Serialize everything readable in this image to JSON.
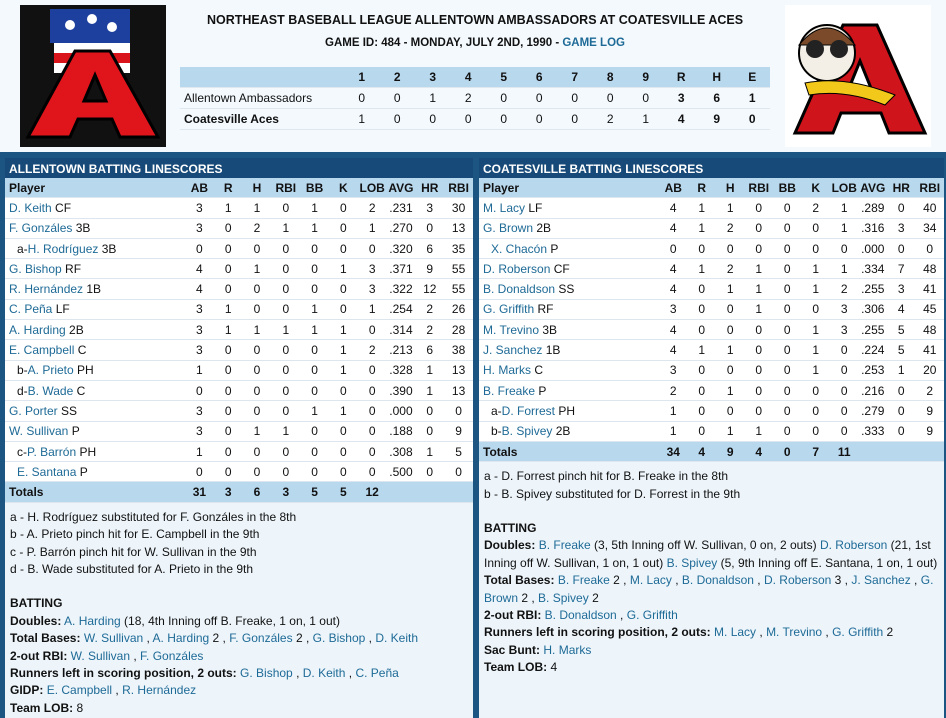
{
  "header": {
    "title": "NORTHEAST BASEBALL LEAGUE ALLENTOWN AMBASSADORS AT COATESVILLE ACES",
    "game_id": "GAME ID: 484 - MONDAY, JULY 2ND, 1990 - ",
    "game_log": "GAME LOG"
  },
  "linescore": {
    "columns": [
      "1",
      "2",
      "3",
      "4",
      "5",
      "6",
      "7",
      "8",
      "9",
      "R",
      "H",
      "E"
    ],
    "rows": [
      {
        "team": "Allentown Ambassadors",
        "cells": [
          "0",
          "0",
          "1",
          "2",
          "0",
          "0",
          "0",
          "0",
          "0",
          "3",
          "6",
          "1"
        ]
      },
      {
        "team": "Coatesville Aces",
        "cells": [
          "1",
          "0",
          "0",
          "0",
          "0",
          "0",
          "0",
          "2",
          "1",
          "4",
          "9",
          "0"
        ]
      }
    ]
  },
  "panels": [
    {
      "title": "ALLENTOWN BATTING LINESCORES",
      "columns": [
        "Player",
        "AB",
        "R",
        "H",
        "RBI",
        "BB",
        "K",
        "LOB",
        "AVG",
        "HR",
        "RBI"
      ],
      "rows": [
        {
          "name": "D. Keith",
          "pos": " CF",
          "stats": [
            "3",
            "1",
            "1",
            "0",
            "1",
            "0",
            "2",
            ".231",
            "3",
            "30"
          ]
        },
        {
          "name": "F. Gonzáles",
          "pos": " 3B",
          "stats": [
            "3",
            "0",
            "2",
            "1",
            "1",
            "0",
            "1",
            ".270",
            "0",
            "13"
          ]
        },
        {
          "prefix": "a-",
          "name": "H. Rodríguez",
          "pos": " 3B",
          "indent": true,
          "stats": [
            "0",
            "0",
            "0",
            "0",
            "0",
            "0",
            "0",
            ".320",
            "6",
            "35"
          ]
        },
        {
          "name": "G. Bishop",
          "pos": " RF",
          "stats": [
            "4",
            "0",
            "1",
            "0",
            "0",
            "1",
            "3",
            ".371",
            "9",
            "55"
          ]
        },
        {
          "name": "R. Hernández",
          "pos": " 1B",
          "stats": [
            "4",
            "0",
            "0",
            "0",
            "0",
            "0",
            "3",
            ".322",
            "12",
            "55"
          ]
        },
        {
          "name": "C. Peña",
          "pos": " LF",
          "stats": [
            "3",
            "1",
            "0",
            "0",
            "1",
            "0",
            "1",
            ".254",
            "2",
            "26"
          ]
        },
        {
          "name": "A. Harding",
          "pos": " 2B",
          "stats": [
            "3",
            "1",
            "1",
            "1",
            "1",
            "1",
            "0",
            ".314",
            "2",
            "28"
          ]
        },
        {
          "name": "E. Campbell",
          "pos": " C",
          "stats": [
            "3",
            "0",
            "0",
            "0",
            "0",
            "1",
            "2",
            ".213",
            "6",
            "38"
          ]
        },
        {
          "prefix": "b-",
          "name": "A. Prieto",
          "pos": " PH",
          "indent": true,
          "stats": [
            "1",
            "0",
            "0",
            "0",
            "0",
            "1",
            "0",
            ".328",
            "1",
            "13"
          ]
        },
        {
          "prefix": "d-",
          "name": "B. Wade",
          "pos": " C",
          "indent": true,
          "stats": [
            "0",
            "0",
            "0",
            "0",
            "0",
            "0",
            "0",
            ".390",
            "1",
            "13"
          ]
        },
        {
          "name": "G. Porter",
          "pos": " SS",
          "stats": [
            "3",
            "0",
            "0",
            "0",
            "1",
            "1",
            "0",
            ".000",
            "0",
            "0"
          ]
        },
        {
          "name": "W. Sullivan",
          "pos": " P",
          "stats": [
            "3",
            "0",
            "1",
            "1",
            "0",
            "0",
            "0",
            ".188",
            "0",
            "9"
          ]
        },
        {
          "prefix": "c-",
          "name": "P. Barrón",
          "pos": " PH",
          "indent": true,
          "stats": [
            "1",
            "0",
            "0",
            "0",
            "0",
            "0",
            "0",
            ".308",
            "1",
            "5"
          ]
        },
        {
          "name": "E. Santana",
          "pos": " P",
          "indent": true,
          "stats": [
            "0",
            "0",
            "0",
            "0",
            "0",
            "0",
            "0",
            ".500",
            "0",
            "0"
          ]
        }
      ],
      "totals": {
        "label": "Totals",
        "stats": [
          "31",
          "3",
          "6",
          "3",
          "5",
          "5",
          "12"
        ]
      },
      "notes": [
        "a - H. Rodríguez substituted for F. Gonzáles in the 8th",
        "b - A. Prieto pinch hit for E. Campbell in the 9th",
        "c - P. Barrón pinch hit for W. Sullivan in the 9th",
        "d - B. Wade substituted for A. Prieto in the 9th"
      ],
      "batting_title": "BATTING",
      "batting": [
        {
          "label": "Doubles:",
          "parts": [
            {
              "link": "A. Harding"
            },
            " (18, 4th Inning off B. Freake, 1 on, 1 out)"
          ]
        },
        {
          "label": "Total Bases:",
          "parts": [
            {
              "link": "W. Sullivan"
            },
            " , ",
            {
              "link": "A. Harding"
            },
            " 2 , ",
            {
              "link": "F. Gonzáles"
            },
            " 2 , ",
            {
              "link": "G. Bishop"
            },
            " , ",
            {
              "link": "D. Keith"
            }
          ]
        },
        {
          "label": "2-out RBI:",
          "parts": [
            {
              "link": "W. Sullivan"
            },
            " , ",
            {
              "link": "F. Gonzáles"
            }
          ]
        },
        {
          "label": "Runners left in scoring position, 2 outs:",
          "parts": [
            {
              "link": "G. Bishop"
            },
            " , ",
            {
              "link": "D. Keith"
            },
            " , ",
            {
              "link": "C. Peña"
            }
          ]
        },
        {
          "label": "GIDP:",
          "parts": [
            {
              "link": "E. Campbell"
            },
            " , ",
            {
              "link": "R. Hernández"
            }
          ]
        },
        {
          "label": "Team LOB:",
          "parts": [
            "8"
          ]
        }
      ]
    },
    {
      "title": "COATESVILLE BATTING LINESCORES",
      "columns": [
        "Player",
        "AB",
        "R",
        "H",
        "RBI",
        "BB",
        "K",
        "LOB",
        "AVG",
        "HR",
        "RBI"
      ],
      "rows": [
        {
          "name": "M. Lacy",
          "pos": " LF",
          "stats": [
            "4",
            "1",
            "1",
            "0",
            "0",
            "2",
            "1",
            ".289",
            "0",
            "40"
          ]
        },
        {
          "name": "G. Brown",
          "pos": " 2B",
          "stats": [
            "4",
            "1",
            "2",
            "0",
            "0",
            "0",
            "1",
            ".316",
            "3",
            "34"
          ]
        },
        {
          "name": "X. Chacón",
          "pos": " P",
          "indent": true,
          "stats": [
            "0",
            "0",
            "0",
            "0",
            "0",
            "0",
            "0",
            ".000",
            "0",
            "0"
          ]
        },
        {
          "name": "D. Roberson",
          "pos": " CF",
          "stats": [
            "4",
            "1",
            "2",
            "1",
            "0",
            "1",
            "1",
            ".334",
            "7",
            "48"
          ]
        },
        {
          "name": "B. Donaldson",
          "pos": " SS",
          "stats": [
            "4",
            "0",
            "1",
            "1",
            "0",
            "1",
            "2",
            ".255",
            "3",
            "41"
          ]
        },
        {
          "name": "G. Griffith",
          "pos": " RF",
          "stats": [
            "3",
            "0",
            "0",
            "1",
            "0",
            "0",
            "3",
            ".306",
            "4",
            "45"
          ]
        },
        {
          "name": "M. Trevino",
          "pos": " 3B",
          "stats": [
            "4",
            "0",
            "0",
            "0",
            "0",
            "1",
            "3",
            ".255",
            "5",
            "48"
          ]
        },
        {
          "name": "J. Sanchez",
          "pos": " 1B",
          "stats": [
            "4",
            "1",
            "1",
            "0",
            "0",
            "1",
            "0",
            ".224",
            "5",
            "41"
          ]
        },
        {
          "name": "H. Marks",
          "pos": " C",
          "stats": [
            "3",
            "0",
            "0",
            "0",
            "0",
            "1",
            "0",
            ".253",
            "1",
            "20"
          ]
        },
        {
          "name": "B. Freake",
          "pos": " P",
          "stats": [
            "2",
            "0",
            "1",
            "0",
            "0",
            "0",
            "0",
            ".216",
            "0",
            "2"
          ]
        },
        {
          "prefix": "a-",
          "name": "D. Forrest",
          "pos": " PH",
          "indent": true,
          "stats": [
            "1",
            "0",
            "0",
            "0",
            "0",
            "0",
            "0",
            ".279",
            "0",
            "9"
          ]
        },
        {
          "prefix": "b-",
          "name": "B. Spivey",
          "pos": " 2B",
          "indent": true,
          "stats": [
            "1",
            "0",
            "1",
            "1",
            "0",
            "0",
            "0",
            ".333",
            "0",
            "9"
          ]
        }
      ],
      "totals": {
        "label": "Totals",
        "stats": [
          "34",
          "4",
          "9",
          "4",
          "0",
          "7",
          "11"
        ]
      },
      "notes": [
        "a - D. Forrest pinch hit for B. Freake in the 8th",
        "b - B. Spivey substituted for D. Forrest in the 9th"
      ],
      "batting_title": "BATTING",
      "batting": [
        {
          "label": "Doubles:",
          "parts": [
            {
              "link": "B. Freake"
            },
            " (3, 5th Inning off W. Sullivan, 0 on, 2 outs) ",
            {
              "link": "D. Roberson"
            },
            " (21, 1st Inning off W. Sullivan, 1 on, 1 out) ",
            {
              "link": "B. Spivey"
            },
            " (5, 9th Inning off E. Santana, 1 on, 1 out)"
          ]
        },
        {
          "label": "Total Bases:",
          "parts": [
            {
              "link": "B. Freake"
            },
            " 2 , ",
            {
              "link": "M. Lacy"
            },
            " , ",
            {
              "link": "B. Donaldson"
            },
            " , ",
            {
              "link": "D. Roberson"
            },
            " 3 , ",
            {
              "link": "J. Sanchez"
            },
            " , ",
            {
              "link": "G. Brown"
            },
            " 2 , ",
            {
              "link": "B. Spivey"
            },
            " 2"
          ]
        },
        {
          "label": "2-out RBI:",
          "parts": [
            {
              "link": "B. Donaldson"
            },
            " , ",
            {
              "link": "G. Griffith"
            }
          ]
        },
        {
          "label": "Runners left in scoring position, 2 outs:",
          "parts": [
            {
              "link": "M. Lacy"
            },
            " , ",
            {
              "link": "M. Trevino"
            },
            " , ",
            {
              "link": "G. Griffith"
            },
            " 2"
          ]
        },
        {
          "label": "Sac Bunt:",
          "parts": [
            {
              "link": "H. Marks"
            }
          ]
        },
        {
          "label": "Team LOB:",
          "parts": [
            "4"
          ]
        }
      ]
    }
  ]
}
